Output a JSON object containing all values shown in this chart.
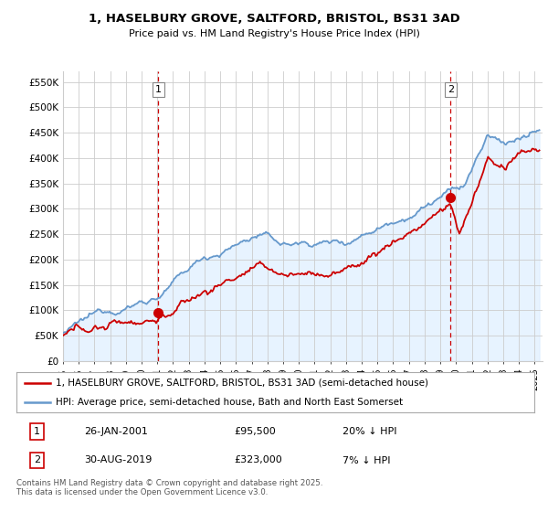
{
  "title": "1, HASELBURY GROVE, SALTFORD, BRISTOL, BS31 3AD",
  "subtitle": "Price paid vs. HM Land Registry's House Price Index (HPI)",
  "xlim_start": 1995.0,
  "xlim_end": 2025.5,
  "ylim_min": 0,
  "ylim_max": 570000,
  "yticks": [
    0,
    50000,
    100000,
    150000,
    200000,
    250000,
    300000,
    350000,
    400000,
    450000,
    500000,
    550000
  ],
  "ytick_labels": [
    "£0",
    "£50K",
    "£100K",
    "£150K",
    "£200K",
    "£250K",
    "£300K",
    "£350K",
    "£400K",
    "£450K",
    "£500K",
    "£550K"
  ],
  "hpi_color": "#6699cc",
  "hpi_fill_color": "#ddeeff",
  "price_color": "#cc0000",
  "sale1_x": 2001.07,
  "sale1_y": 95500,
  "sale1_label": "1",
  "sale2_x": 2019.66,
  "sale2_y": 323000,
  "sale2_label": "2",
  "legend_line1": "1, HASELBURY GROVE, SALTFORD, BRISTOL, BS31 3AD (semi-detached house)",
  "legend_line2": "HPI: Average price, semi-detached house, Bath and North East Somerset",
  "table_row1": [
    "1",
    "26-JAN-2001",
    "£95,500",
    "20% ↓ HPI"
  ],
  "table_row2": [
    "2",
    "30-AUG-2019",
    "£323,000",
    "7% ↓ HPI"
  ],
  "footnote": "Contains HM Land Registry data © Crown copyright and database right 2025.\nThis data is licensed under the Open Government Licence v3.0.",
  "bg_color": "#ffffff",
  "grid_color": "#cccccc",
  "xticks": [
    1995,
    1996,
    1997,
    1998,
    1999,
    2000,
    2001,
    2002,
    2003,
    2004,
    2005,
    2006,
    2007,
    2008,
    2009,
    2010,
    2011,
    2012,
    2013,
    2014,
    2015,
    2016,
    2017,
    2018,
    2019,
    2020,
    2021,
    2022,
    2023,
    2024,
    2025
  ]
}
